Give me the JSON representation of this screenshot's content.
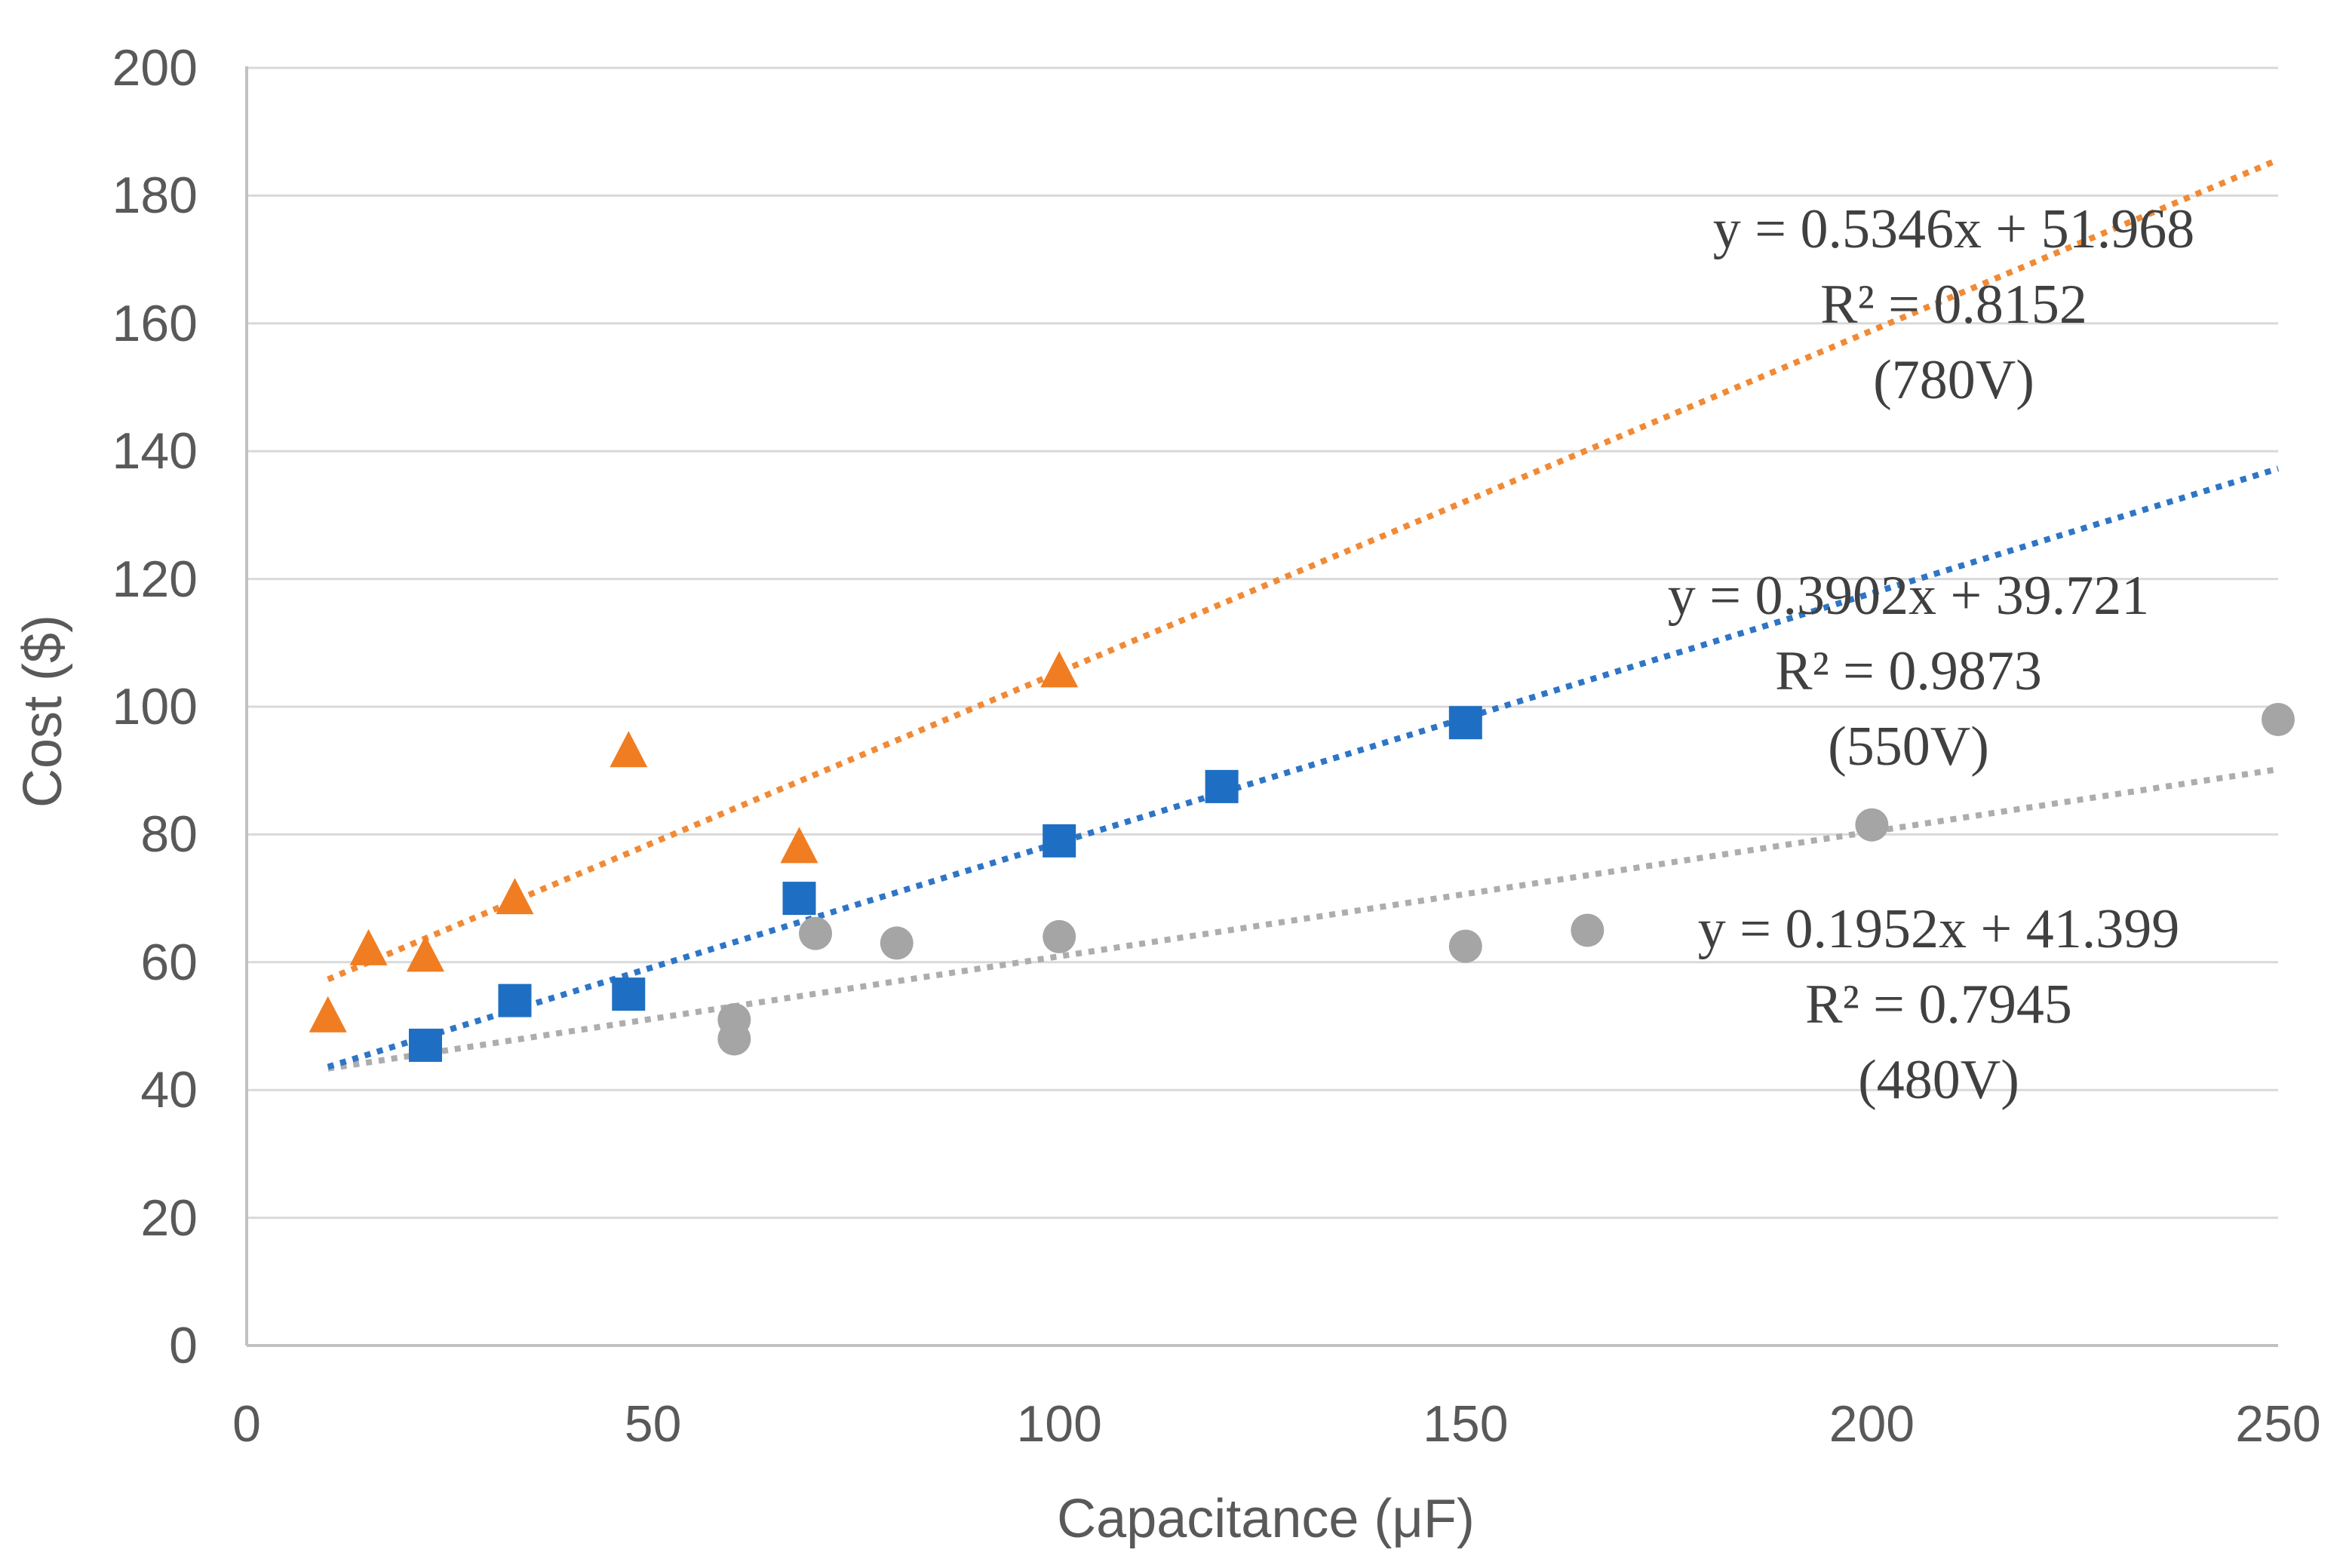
{
  "chart_data": {
    "type": "scatter",
    "title": "",
    "xlabel": "Capacitance (μF)",
    "ylabel": "Cost ($)",
    "xlim": [
      0,
      250
    ],
    "ylim": [
      0,
      200
    ],
    "xticks": [
      0,
      50,
      100,
      150,
      200,
      250
    ],
    "yticks": [
      0,
      20,
      40,
      60,
      80,
      100,
      120,
      140,
      160,
      180,
      200
    ],
    "grid": "horizontal-only",
    "legend_position": "none",
    "colors": {
      "series_780v": "#F07D21",
      "series_550v": "#1E6FC3",
      "series_480v": "#A5A5A5",
      "gridline": "#D9D9D9",
      "axis_line": "#C1C1C1",
      "tick_text": "#595959",
      "annotation_text": "#404040"
    },
    "series": [
      {
        "name": "480V",
        "marker": "circle",
        "color": "#A5A5A5",
        "trend_color": "#ADADAD",
        "points": [
          [
            60,
            51
          ],
          [
            60,
            48
          ],
          [
            70,
            64.5
          ],
          [
            80,
            63
          ],
          [
            100,
            64
          ],
          [
            150,
            62.5
          ],
          [
            165,
            65
          ],
          [
            200,
            81.5
          ],
          [
            250,
            98
          ]
        ],
        "trendline": {
          "slope": 0.1952,
          "intercept": 41.399,
          "x_start": 10,
          "x_end": 250,
          "style": "dotted"
        },
        "annotation": {
          "equation": "y = 0.1952x + 41.399",
          "r2": "R² = 0.7945",
          "label": "(480V)"
        }
      },
      {
        "name": "550V",
        "marker": "square",
        "color": "#1E6FC3",
        "trend_color": "#2E75C6",
        "points": [
          [
            22,
            47
          ],
          [
            33,
            54
          ],
          [
            47,
            55
          ],
          [
            68,
            70
          ],
          [
            100,
            79
          ],
          [
            120,
            87.5
          ],
          [
            150,
            97.5
          ]
        ],
        "trendline": {
          "slope": 0.3902,
          "intercept": 39.721,
          "x_start": 10,
          "x_end": 250,
          "style": "dotted"
        },
        "annotation": {
          "equation": "y = 0.3902x + 39.721",
          "r2": "R² = 0.9873",
          "label": "(550V)"
        }
      },
      {
        "name": "780V",
        "marker": "triangle",
        "color": "#F07D21",
        "trend_color": "#F08A36",
        "points": [
          [
            10,
            51.5
          ],
          [
            15,
            62
          ],
          [
            22,
            61
          ],
          [
            33,
            70
          ],
          [
            47,
            93
          ],
          [
            68,
            78
          ],
          [
            100,
            105.5
          ]
        ],
        "trendline": {
          "slope": 0.5346,
          "intercept": 51.968,
          "x_start": 10,
          "x_end": 250,
          "style": "dotted"
        },
        "annotation": {
          "equation": "y = 0.5346x + 51.968",
          "r2": "R² = 0.8152",
          "label": "(780V)"
        }
      }
    ]
  }
}
